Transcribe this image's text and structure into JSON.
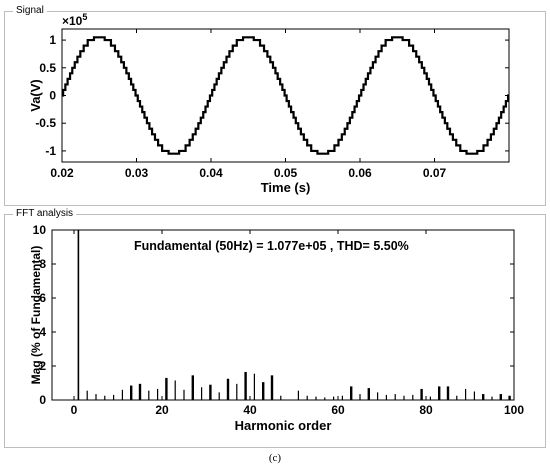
{
  "caption": "(c)",
  "panels": {
    "signal_title": "Signal",
    "fft_title": "FFT analysis"
  },
  "chart_data": [
    {
      "type": "line",
      "title": "",
      "xlabel": "Time (s)",
      "ylabel": "Va(V)",
      "y_multiplier_label": "×10",
      "y_multiplier_exp": "5",
      "xlim": [
        0.02,
        0.08
      ],
      "ylim": [
        -1.2,
        1.2
      ],
      "x_ticks": [
        0.02,
        0.03,
        0.04,
        0.05,
        0.06,
        0.07
      ],
      "x_tick_labels": [
        "0.02",
        "0.03",
        "0.04",
        "0.05",
        "0.06",
        "0.07"
      ],
      "y_ticks": [
        1,
        0.5,
        0,
        -0.5,
        -1
      ],
      "y_tick_labels": [
        "1",
        "0.5",
        "0",
        "-0.5",
        "-1"
      ],
      "series": [
        {
          "frequency_hz": 50,
          "amplitude": 1.077,
          "levels": 11,
          "level_step": 0.1,
          "color": "#000000"
        }
      ]
    },
    {
      "type": "bar",
      "title": "Fundamental (50Hz) = 1.077e+05 , THD= 5.50%",
      "xlabel": "Harmonic order",
      "ylabel": "Mag (% of Fundamental)",
      "xlim": [
        -5,
        100
      ],
      "ylim": [
        0,
        10
      ],
      "x_ticks": [
        0,
        20,
        40,
        60,
        80,
        100
      ],
      "x_tick_labels": [
        "0",
        "20",
        "40",
        "60",
        "80",
        "100"
      ],
      "y_ticks": [
        0,
        2,
        4,
        6,
        8,
        10
      ],
      "y_tick_labels": [
        "0",
        "2",
        "4",
        "6",
        "8",
        "10"
      ],
      "bars": [
        {
          "x": 1,
          "y": 10
        },
        {
          "x": 3,
          "y": 0.55
        },
        {
          "x": 5,
          "y": 0.35
        },
        {
          "x": 7,
          "y": 0.25
        },
        {
          "x": 9,
          "y": 0.3
        },
        {
          "x": 11,
          "y": 0.6
        },
        {
          "x": 13,
          "y": 0.85
        },
        {
          "x": 15,
          "y": 0.95
        },
        {
          "x": 17,
          "y": 0.55
        },
        {
          "x": 19,
          "y": 0.65
        },
        {
          "x": 21,
          "y": 1.3
        },
        {
          "x": 23,
          "y": 1.15
        },
        {
          "x": 25,
          "y": 0.6
        },
        {
          "x": 27,
          "y": 1.45
        },
        {
          "x": 29,
          "y": 0.75
        },
        {
          "x": 31,
          "y": 0.9
        },
        {
          "x": 33,
          "y": 0.45
        },
        {
          "x": 35,
          "y": 1.25
        },
        {
          "x": 37,
          "y": 0.95
        },
        {
          "x": 39,
          "y": 1.65
        },
        {
          "x": 41,
          "y": 1.55
        },
        {
          "x": 43,
          "y": 1.05
        },
        {
          "x": 45,
          "y": 1.45
        },
        {
          "x": 47,
          "y": 0.25
        },
        {
          "x": 51,
          "y": 0.55
        },
        {
          "x": 53,
          "y": 0.25
        },
        {
          "x": 55,
          "y": 0.2
        },
        {
          "x": 57,
          "y": 0.15
        },
        {
          "x": 59,
          "y": 0.2
        },
        {
          "x": 61,
          "y": 0.25
        },
        {
          "x": 63,
          "y": 0.8
        },
        {
          "x": 65,
          "y": 0.35
        },
        {
          "x": 67,
          "y": 0.7
        },
        {
          "x": 69,
          "y": 0.45
        },
        {
          "x": 71,
          "y": 0.3
        },
        {
          "x": 73,
          "y": 0.35
        },
        {
          "x": 75,
          "y": 0.25
        },
        {
          "x": 77,
          "y": 0.3
        },
        {
          "x": 79,
          "y": 0.65
        },
        {
          "x": 81,
          "y": 0.2
        },
        {
          "x": 83,
          "y": 0.8
        },
        {
          "x": 85,
          "y": 0.8
        },
        {
          "x": 87,
          "y": 0.25
        },
        {
          "x": 89,
          "y": 0.65
        },
        {
          "x": 91,
          "y": 0.5
        },
        {
          "x": 93,
          "y": 0.35
        },
        {
          "x": 95,
          "y": 0.2
        },
        {
          "x": 97,
          "y": 0.35
        },
        {
          "x": 99,
          "y": 0.25
        }
      ],
      "bold_bars": [
        1,
        13,
        15,
        21,
        27,
        31,
        35,
        39,
        43,
        45,
        63,
        67,
        79,
        83,
        85,
        93,
        97,
        99
      ],
      "bar_color": "#000000"
    }
  ]
}
